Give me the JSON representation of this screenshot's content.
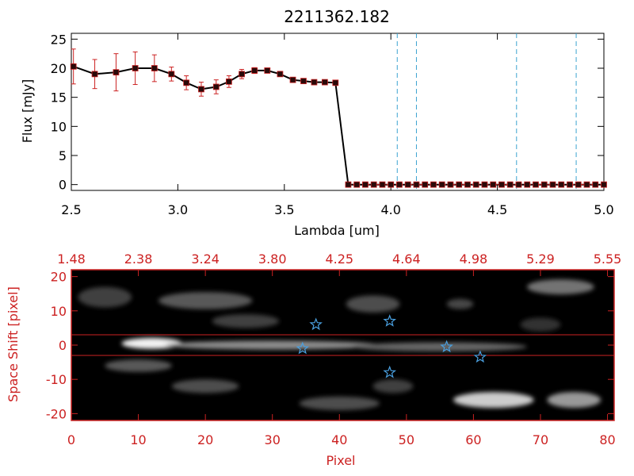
{
  "colors": {
    "axis_black": "#000000",
    "axis_red": "#cc2222",
    "marker": "#2a0a0a",
    "errorbar": "#cc2222",
    "vline": "#3ba3d0",
    "star": "#4aa0e0",
    "hline": "#cc2222"
  },
  "chart_data": [
    {
      "type": "line",
      "title": "2211362.182",
      "xlabel": "Lambda [um]",
      "ylabel": "Flux [mJy]",
      "xlim": [
        2.5,
        5.0
      ],
      "ylim": [
        -1,
        26
      ],
      "xticks": [
        "2.5",
        "3.0",
        "3.5",
        "4.0",
        "4.5",
        "5.0"
      ],
      "xtick_values": [
        2.5,
        3.0,
        3.5,
        4.0,
        4.5,
        5.0
      ],
      "yticks": [
        "0",
        "5",
        "10",
        "15",
        "20",
        "25"
      ],
      "ytick_values": [
        0,
        5,
        10,
        15,
        20,
        25
      ],
      "series": [
        {
          "x": [
            2.51,
            2.61,
            2.71,
            2.8,
            2.89,
            2.97,
            3.04,
            3.11,
            3.18,
            3.24,
            3.3,
            3.36,
            3.42,
            3.48,
            3.54,
            3.59,
            3.64,
            3.69,
            3.74,
            3.8,
            3.84,
            3.88,
            3.92,
            3.96,
            4.0,
            4.04,
            4.08,
            4.12,
            4.16,
            4.2,
            4.24,
            4.28,
            4.32,
            4.36,
            4.4,
            4.44,
            4.48,
            4.52,
            4.56,
            4.6,
            4.64,
            4.68,
            4.72,
            4.76,
            4.8,
            4.84,
            4.88,
            4.92,
            4.96,
            5.0
          ],
          "y": [
            20.3,
            19.0,
            19.3,
            20.0,
            20.0,
            19.0,
            17.5,
            16.4,
            16.8,
            17.7,
            19.0,
            19.6,
            19.6,
            19.0,
            18.0,
            17.8,
            17.6,
            17.6,
            17.5,
            0,
            0,
            0,
            0,
            0,
            0,
            0,
            0,
            0,
            0,
            0,
            0,
            0,
            0,
            0,
            0,
            0,
            0,
            0,
            0,
            0,
            0,
            0,
            0,
            0,
            0,
            0,
            0,
            0,
            0,
            0
          ],
          "yerr": [
            3.0,
            2.5,
            3.2,
            2.8,
            2.3,
            1.2,
            1.2,
            1.2,
            1.2,
            1.0,
            0.8,
            0.5,
            0.4,
            0.4,
            0.3,
            0.3,
            0.3,
            0.3,
            0.3,
            0,
            0,
            0,
            0,
            0,
            0,
            0,
            0,
            0,
            0,
            0,
            0,
            0,
            0,
            0,
            0,
            0,
            0,
            0,
            0,
            0,
            0,
            0,
            0,
            0,
            0,
            0,
            0,
            0,
            0,
            0
          ]
        }
      ],
      "vlines": [
        4.03,
        4.12,
        4.59,
        4.87
      ],
      "grid": false
    },
    {
      "type": "heatmap",
      "xlabel": "Pixel",
      "ylabel": "Space Shift [pixel]",
      "xlim": [
        0,
        81
      ],
      "ylim": [
        -22,
        22
      ],
      "xticks": [
        "0",
        "10",
        "20",
        "30",
        "40",
        "50",
        "60",
        "70",
        "80"
      ],
      "xtick_values": [
        0,
        10,
        20,
        30,
        40,
        50,
        60,
        70,
        80
      ],
      "yticks": [
        "-20",
        "-10",
        "0",
        "10",
        "20"
      ],
      "ytick_values": [
        -20,
        -10,
        0,
        10,
        20
      ],
      "top_tick_labels": [
        "1.48",
        "2.38",
        "3.24",
        "3.80",
        "4.25",
        "4.64",
        "4.98",
        "5.29",
        "5.55"
      ],
      "top_tick_values": [
        0,
        10,
        20,
        30,
        40,
        50,
        60,
        70,
        80
      ],
      "hlines": [
        3,
        -3
      ],
      "stars": [
        {
          "x": 36.5,
          "y": 6
        },
        {
          "x": 47.5,
          "y": 7
        },
        {
          "x": 34.5,
          "y": -1
        },
        {
          "x": 56,
          "y": -0.5
        },
        {
          "x": 61,
          "y": -3.5
        },
        {
          "x": 47.5,
          "y": -8
        }
      ],
      "blobs": [
        {
          "x": 12,
          "y": 0.5,
          "sx": 4.5,
          "sy": 1.6,
          "a": 0.95
        },
        {
          "x": 30,
          "y": 0,
          "sx": 16,
          "sy": 1.3,
          "a": 0.55
        },
        {
          "x": 55,
          "y": -0.5,
          "sx": 13,
          "sy": 1.3,
          "a": 0.4
        },
        {
          "x": 20,
          "y": 13,
          "sx": 7,
          "sy": 2.5,
          "a": 0.35
        },
        {
          "x": 5,
          "y": 14,
          "sx": 4,
          "sy": 3,
          "a": 0.25
        },
        {
          "x": 45,
          "y": 12,
          "sx": 4,
          "sy": 2.5,
          "a": 0.3
        },
        {
          "x": 58,
          "y": 12,
          "sx": 2,
          "sy": 1.5,
          "a": 0.28
        },
        {
          "x": 73,
          "y": 17,
          "sx": 5,
          "sy": 2.2,
          "a": 0.45
        },
        {
          "x": 10,
          "y": -6,
          "sx": 5,
          "sy": 1.8,
          "a": 0.35
        },
        {
          "x": 20,
          "y": -12,
          "sx": 5,
          "sy": 2,
          "a": 0.3
        },
        {
          "x": 26,
          "y": 7,
          "sx": 5,
          "sy": 2,
          "a": 0.25
        },
        {
          "x": 63,
          "y": -16,
          "sx": 6,
          "sy": 2.3,
          "a": 0.8
        },
        {
          "x": 75,
          "y": -16,
          "sx": 4,
          "sy": 2.3,
          "a": 0.6
        },
        {
          "x": 40,
          "y": -17,
          "sx": 6,
          "sy": 2,
          "a": 0.3
        },
        {
          "x": 48,
          "y": -12,
          "sx": 3,
          "sy": 2,
          "a": 0.25
        },
        {
          "x": 70,
          "y": 6,
          "sx": 3,
          "sy": 2,
          "a": 0.2
        }
      ]
    }
  ]
}
